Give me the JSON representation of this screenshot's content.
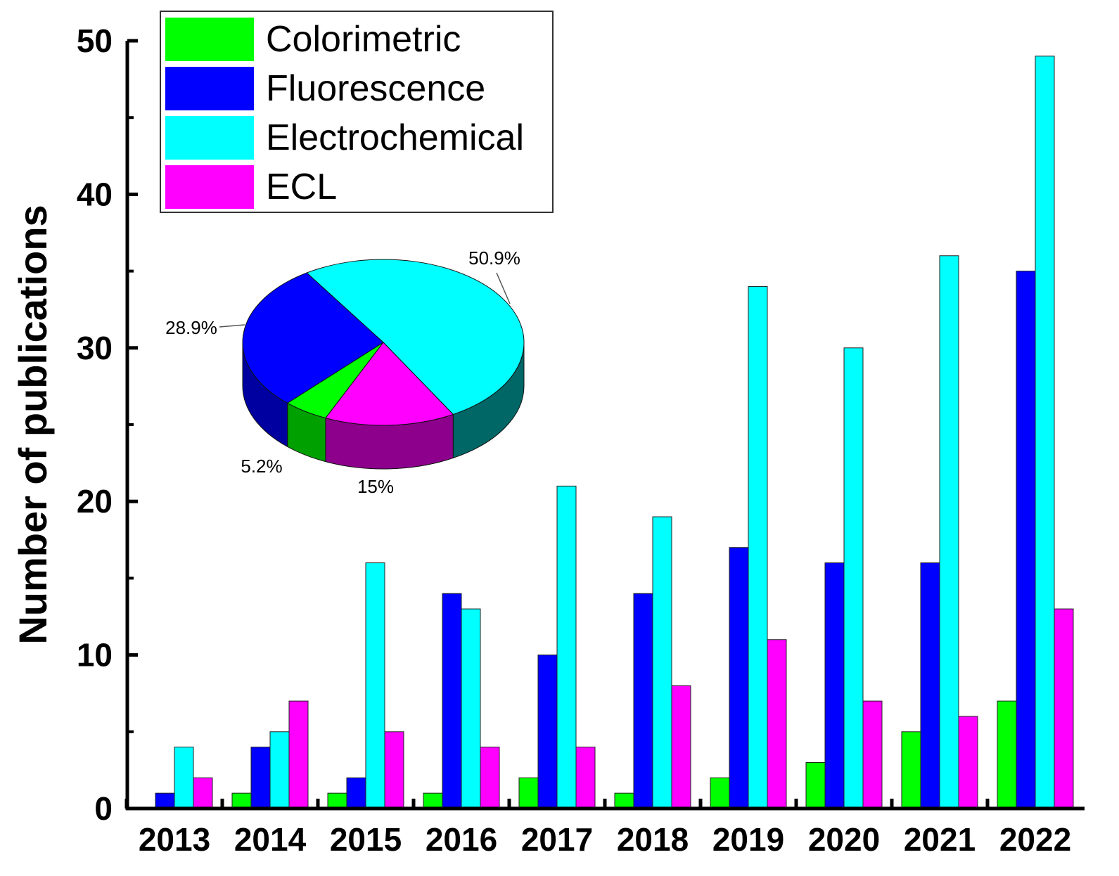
{
  "chart_data": {
    "type": "bar",
    "title": "",
    "xlabel": "",
    "ylabel": "Number of publications",
    "ylim": [
      0,
      50
    ],
    "yticks": [
      0,
      10,
      20,
      30,
      40,
      50
    ],
    "categories": [
      "2013",
      "2014",
      "2015",
      "2016",
      "2017",
      "2018",
      "2019",
      "2020",
      "2021",
      "2022"
    ],
    "series": [
      {
        "name": "Colorimetric",
        "color": "#00ff00",
        "values": [
          0,
          1,
          1,
          1,
          2,
          1,
          2,
          3,
          5,
          7
        ]
      },
      {
        "name": "Fluorescence",
        "color": "#0000ff",
        "values": [
          1,
          4,
          2,
          14,
          10,
          14,
          17,
          16,
          16,
          35
        ]
      },
      {
        "name": "Electrochemical",
        "color": "#00ffff",
        "values": [
          4,
          5,
          16,
          13,
          21,
          19,
          34,
          30,
          36,
          49
        ]
      },
      {
        "name": "ECL",
        "color": "#ff00ff",
        "values": [
          2,
          7,
          5,
          4,
          4,
          8,
          11,
          7,
          6,
          13
        ]
      }
    ],
    "legend": {
      "placement": "top-left"
    },
    "inset_pie": {
      "type": "pie",
      "slices": [
        {
          "name": "Electrochemical",
          "value": 50.9,
          "label": "50.9%",
          "color": "#00ffff"
        },
        {
          "name": "ECL",
          "value": 15,
          "label": "15%",
          "color": "#ff00ff"
        },
        {
          "name": "Colorimetric",
          "value": 5.2,
          "label": "5.2%",
          "color": "#00ff00"
        },
        {
          "name": "Fluorescence",
          "value": 28.9,
          "label": "28.9%",
          "color": "#0000ff"
        }
      ]
    }
  }
}
